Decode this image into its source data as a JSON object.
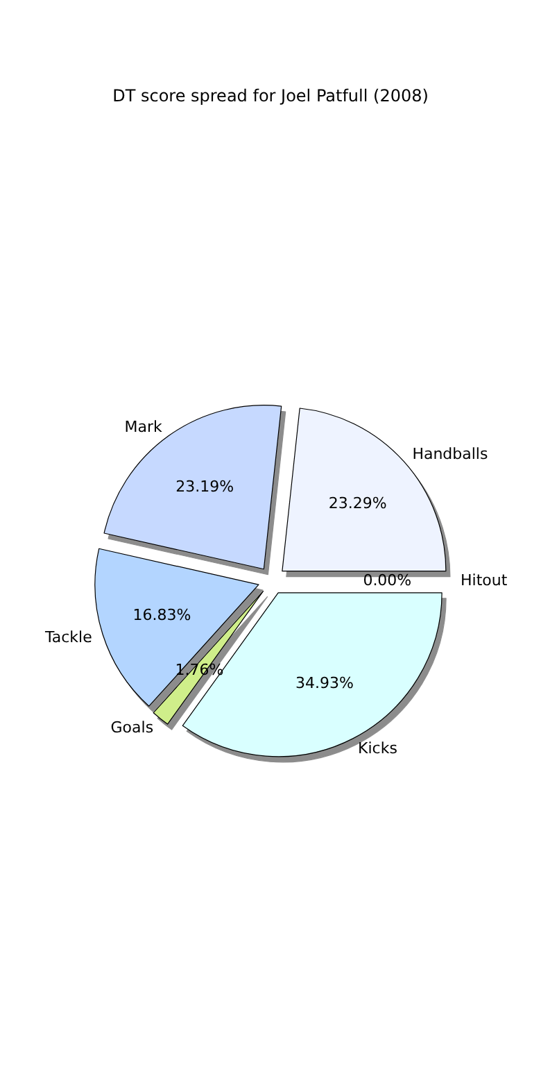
{
  "chart_data": {
    "type": "pie",
    "title": "DT score spread for Joel Patfull (2008)",
    "categories": [
      "Handballs",
      "Mark",
      "Tackle",
      "Goals",
      "Kicks",
      "Hitout"
    ],
    "values": [
      23.29,
      23.19,
      16.83,
      1.76,
      34.93,
      0.0
    ],
    "value_labels": [
      "23.29%",
      "23.19%",
      "16.83%",
      "1.76%",
      "34.93%",
      "0.00%"
    ],
    "colors": [
      "#eef3ff",
      "#c6d9ff",
      "#b3d5ff",
      "#cfee8a",
      "#d9ffff",
      "#ffffff"
    ],
    "legend": false
  }
}
